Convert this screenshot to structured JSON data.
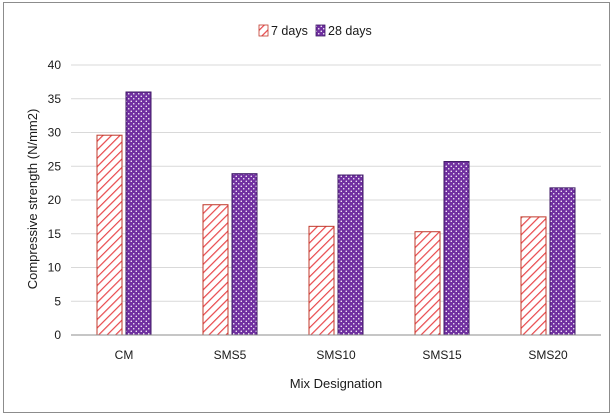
{
  "chart_data": {
    "type": "bar",
    "title": "",
    "xlabel": "Mix Designation",
    "ylabel": "Compressive strength (N/mm2)",
    "categories": [
      "CM",
      "SMS5",
      "SMS10",
      "SMS15",
      "SMS20"
    ],
    "ylim": [
      0,
      40
    ],
    "yticks": [
      0,
      5,
      10,
      15,
      20,
      25,
      30,
      35,
      40
    ],
    "grid": true,
    "legend_position": "top-center",
    "series": [
      {
        "name": "7 days",
        "values": [
          29.6,
          19.3,
          16.1,
          15.3,
          17.5
        ],
        "color": "#e8474b",
        "pattern": "diagonal-hatch"
      },
      {
        "name": "28 days",
        "values": [
          36.0,
          23.9,
          23.7,
          25.7,
          21.8
        ],
        "color": "#7030a0",
        "pattern": "dotted"
      }
    ]
  }
}
